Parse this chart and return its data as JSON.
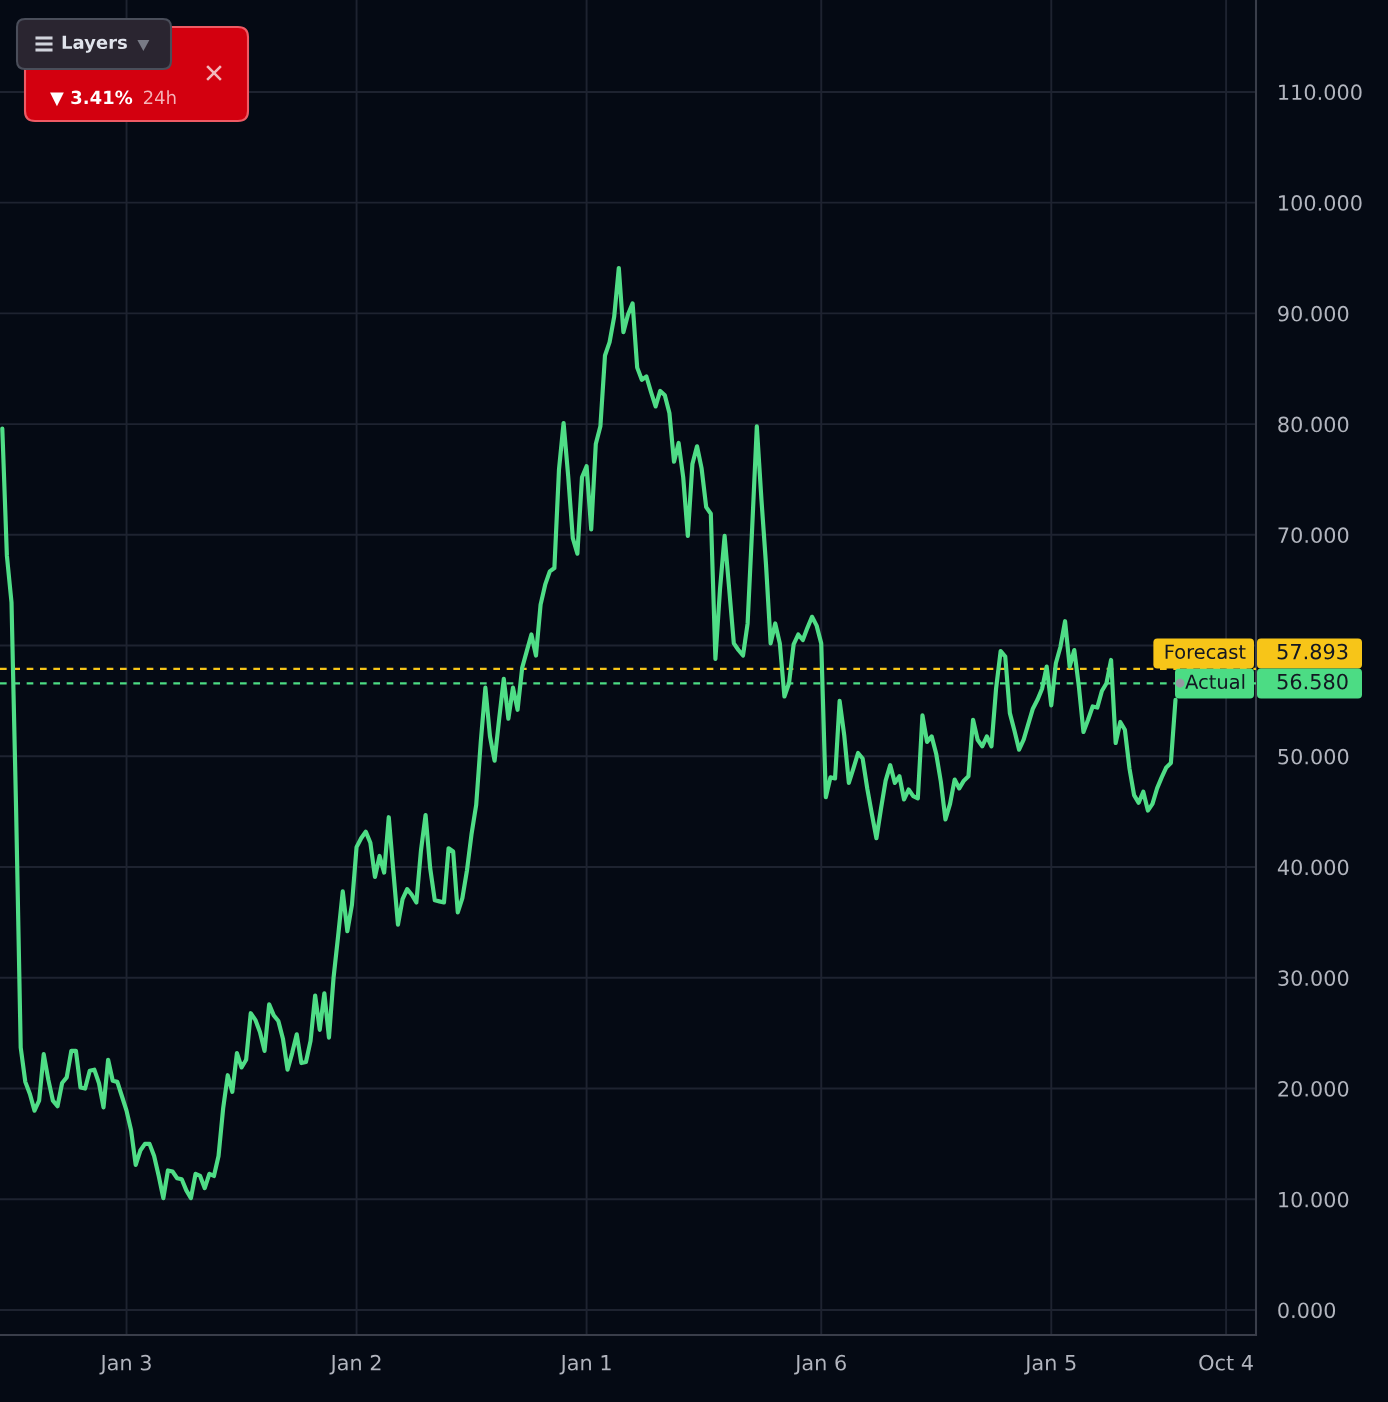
{
  "chart_data": {
    "type": "line",
    "categories": [
      null,
      null,
      null,
      null,
      null,
      null,
      null,
      null,
      null,
      null,
      null,
      null,
      null,
      null,
      null,
      null,
      null,
      null,
      null,
      null,
      null,
      null,
      null,
      null,
      null,
      null,
      null,
      "Jan 3",
      null,
      null,
      null,
      null,
      null,
      null,
      null,
      null,
      null,
      null,
      null,
      null,
      null,
      null,
      null,
      null,
      null,
      null,
      null,
      null,
      null,
      null,
      null,
      null,
      null,
      null,
      null,
      null,
      null,
      null,
      null,
      null,
      null,
      null,
      null,
      null,
      null,
      null,
      null,
      null,
      null,
      null,
      null,
      null,
      null,
      null,
      null,
      null,
      null,
      "Jan 2",
      null,
      null,
      null,
      null,
      null,
      null,
      null,
      null,
      null,
      null,
      null,
      null,
      null,
      null,
      null,
      null,
      null,
      null,
      null,
      null,
      null,
      null,
      null,
      null,
      null,
      null,
      null,
      null,
      null,
      null,
      null,
      null,
      null,
      null,
      null,
      null,
      null,
      null,
      null,
      null,
      null,
      null,
      null,
      null,
      null,
      null,
      null,
      null,
      null,
      "Jan 1",
      null,
      null,
      null,
      null,
      null,
      null,
      null,
      null,
      null,
      null,
      null,
      null,
      null,
      null,
      null,
      null,
      null,
      null,
      null,
      null,
      null,
      null,
      null,
      null,
      null,
      null,
      null,
      null,
      null,
      null,
      null,
      null,
      null,
      null,
      null,
      null,
      null,
      null,
      null,
      null,
      null,
      null,
      null,
      null,
      null,
      null,
      null,
      null,
      null,
      null,
      "Jan 6",
      null,
      null,
      null,
      null,
      null,
      null,
      null,
      null,
      null,
      null,
      null,
      null,
      null,
      null,
      null,
      null,
      null,
      null,
      null,
      null,
      null,
      null,
      null,
      null,
      null,
      null,
      null,
      null,
      null,
      null,
      null,
      null,
      null,
      null,
      null,
      null,
      null,
      null,
      null,
      null,
      null,
      null,
      null,
      null,
      null,
      null,
      null,
      null,
      null,
      "Jan 5",
      null,
      null,
      null,
      null,
      null,
      null,
      null,
      null,
      null,
      null,
      null,
      null,
      null,
      null,
      null,
      null,
      null,
      null,
      null,
      null,
      null,
      null,
      null,
      null,
      null,
      null,
      null,
      null,
      null,
      null,
      null,
      null,
      null,
      null,
      null,
      null,
      null,
      "Oct 4",
      null,
      null,
      null,
      null,
      null,
      null
    ],
    "series": [
      {
        "color": "#4fdd86",
        "values": [
          79.6,
          68.1,
          63.9,
          45.2,
          23.7,
          20.6,
          19.5,
          18.0,
          18.9,
          23.1,
          20.8,
          18.9,
          18.4,
          20.5,
          21.0,
          23.4,
          23.4,
          20.1,
          20.0,
          21.6,
          21.7,
          20.5,
          18.3,
          22.6,
          20.7,
          20.6,
          19.3,
          18.0,
          16.2,
          13.1,
          14.4,
          15.0,
          15.0,
          13.9,
          12.1,
          10.1,
          12.6,
          12.5,
          11.9,
          11.8,
          10.8,
          10.1,
          12.3,
          12.1,
          11.0,
          12.3,
          12.1,
          13.9,
          18.2,
          21.2,
          19.7,
          23.2,
          21.9,
          22.6,
          26.8,
          26.2,
          25.1,
          23.4,
          27.6,
          26.6,
          26.1,
          24.5,
          21.7,
          23.2,
          24.9,
          22.3,
          22.4,
          24.3,
          28.4,
          25.3,
          28.6,
          24.6,
          30.0,
          33.8,
          37.8,
          34.2,
          36.6,
          41.8,
          42.6,
          43.2,
          42.2,
          39.1,
          41.0,
          39.5,
          44.5,
          39.6,
          34.8,
          37.1,
          38.0,
          37.5,
          36.8,
          41.5,
          44.7,
          39.9,
          37.0,
          36.9,
          36.8,
          41.7,
          41.4,
          35.9,
          37.2,
          39.7,
          43.0,
          45.6,
          51.3,
          56.2,
          51.8,
          49.6,
          53.4,
          57.0,
          53.4,
          56.2,
          54.2,
          58.0,
          59.5,
          61.0,
          59.1,
          63.7,
          65.5,
          66.7,
          67.0,
          75.9,
          80.1,
          75.3,
          69.7,
          68.3,
          75.2,
          76.2,
          70.5,
          78.2,
          79.8,
          86.2,
          87.4,
          89.7,
          94.1,
          88.3,
          89.9,
          90.9,
          85.1,
          84.0,
          84.3,
          82.9,
          81.6,
          83.0,
          82.6,
          81.0,
          76.6,
          78.3,
          75.2,
          69.9,
          76.4,
          78.0,
          76.0,
          72.5,
          71.9,
          58.8,
          65.1,
          69.9,
          65.1,
          60.2,
          59.6,
          59.1,
          62.0,
          70.7,
          79.8,
          73.2,
          67.3,
          60.2,
          62.0,
          60.2,
          55.4,
          56.6,
          60.1,
          61.0,
          60.5,
          61.6,
          62.6,
          61.8,
          60.2,
          46.3,
          48.1,
          48.0,
          55.0,
          51.9,
          47.6,
          48.9,
          50.3,
          49.8,
          47.1,
          44.8,
          42.6,
          45.3,
          47.8,
          49.2,
          47.6,
          48.2,
          46.1,
          47.0,
          46.4,
          46.2,
          53.7,
          51.3,
          51.8,
          50.2,
          47.7,
          44.3,
          45.7,
          47.9,
          47.1,
          47.8,
          48.2,
          53.3,
          51.5,
          50.9,
          51.8,
          50.9,
          56.1,
          59.5,
          59.0,
          53.9,
          52.3,
          50.6,
          51.5,
          52.9,
          54.3,
          55.1,
          56.1,
          58.1,
          54.6,
          58.4,
          59.9,
          62.2,
          58.1,
          59.6,
          56.3,
          52.2,
          53.3,
          54.5,
          54.4,
          55.9,
          56.6,
          58.7,
          51.2,
          53.1,
          52.4,
          48.9,
          46.5,
          45.8,
          46.8,
          45.1,
          45.7,
          47.1,
          48.1,
          49.0,
          49.4,
          55.1,
          null,
          null,
          null,
          null,
          null,
          null,
          null,
          null,
          null,
          null,
          null,
          null,
          null,
          null,
          null,
          null,
          null
        ]
      },
      {
        "type": "scatter",
        "color": "#9598a1",
        "values": [
          null,
          null,
          null,
          null,
          null,
          null,
          null,
          null,
          null,
          null,
          null,
          null,
          null,
          null,
          null,
          null,
          null,
          null,
          null,
          null,
          null,
          null,
          null,
          null,
          null,
          null,
          null,
          null,
          null,
          null,
          null,
          null,
          null,
          null,
          null,
          null,
          null,
          null,
          null,
          null,
          null,
          null,
          null,
          null,
          null,
          null,
          null,
          null,
          null,
          null,
          null,
          null,
          null,
          null,
          null,
          null,
          null,
          null,
          null,
          null,
          null,
          null,
          null,
          null,
          null,
          null,
          null,
          null,
          null,
          null,
          null,
          null,
          null,
          null,
          null,
          null,
          null,
          null,
          null,
          null,
          null,
          null,
          null,
          null,
          null,
          null,
          null,
          null,
          null,
          null,
          null,
          null,
          null,
          null,
          null,
          null,
          null,
          null,
          null,
          null,
          null,
          null,
          null,
          null,
          null,
          null,
          null,
          null,
          null,
          null,
          null,
          null,
          null,
          null,
          null,
          null,
          null,
          null,
          null,
          null,
          null,
          null,
          null,
          null,
          null,
          null,
          null,
          null,
          null,
          null,
          null,
          null,
          null,
          null,
          null,
          null,
          null,
          null,
          null,
          null,
          null,
          null,
          null,
          null,
          null,
          null,
          null,
          null,
          null,
          null,
          null,
          null,
          null,
          null,
          null,
          null,
          null,
          null,
          null,
          null,
          null,
          null,
          null,
          null,
          null,
          null,
          null,
          null,
          null,
          null,
          null,
          null,
          null,
          null,
          null,
          null,
          null,
          null,
          null,
          null,
          null,
          null,
          null,
          null,
          null,
          null,
          null,
          null,
          null,
          null,
          null,
          null,
          null,
          null,
          null,
          null,
          null,
          null,
          null,
          null,
          null,
          null,
          null,
          null,
          null,
          null,
          null,
          null,
          null,
          null,
          null,
          null,
          null,
          null,
          null,
          null,
          null,
          null,
          null,
          null,
          null,
          null,
          null,
          null,
          null,
          null,
          null,
          null,
          null,
          null,
          null,
          null,
          null,
          null,
          null,
          null,
          null,
          null,
          null,
          null,
          null,
          null,
          null,
          null,
          null,
          null,
          null,
          null,
          null,
          null,
          null,
          null,
          null,
          null,
          null,
          null,
          56.6,
          null,
          null,
          null,
          null,
          null,
          null,
          null,
          null,
          null,
          null,
          null,
          null,
          null,
          null,
          null,
          null
        ]
      }
    ],
    "ylim": [
      -2.26,
      118.3
    ],
    "yticks": [
      {
        "value": 0,
        "label": "0.000"
      },
      {
        "value": 10,
        "label": "10.000"
      },
      {
        "value": 20,
        "label": "20.000"
      },
      {
        "value": 30,
        "label": "30.000"
      },
      {
        "value": 40,
        "label": "40.000"
      },
      {
        "value": 50,
        "label": "50.000"
      },
      {
        "value": 60,
        "label": null
      },
      {
        "value": 70,
        "label": "70.000"
      },
      {
        "value": 80,
        "label": "80.000"
      },
      {
        "value": 90,
        "label": "90.000"
      },
      {
        "value": 100,
        "label": "100.000"
      },
      {
        "value": 110,
        "label": "110.000"
      }
    ],
    "grid": true,
    "ref_lines": [
      {
        "axis": "y",
        "value": 57.893,
        "label": "Forecast",
        "color": "#f7c518",
        "line_style": "dashed"
      },
      {
        "axis": "y",
        "value": 56.58,
        "label": "Actual",
        "color": "#4cdc84",
        "line_style": "dashed"
      }
    ],
    "annotations": [
      "Layers",
      "▼ 3.41%",
      "24h",
      "57.893",
      "56.580"
    ]
  }
}
